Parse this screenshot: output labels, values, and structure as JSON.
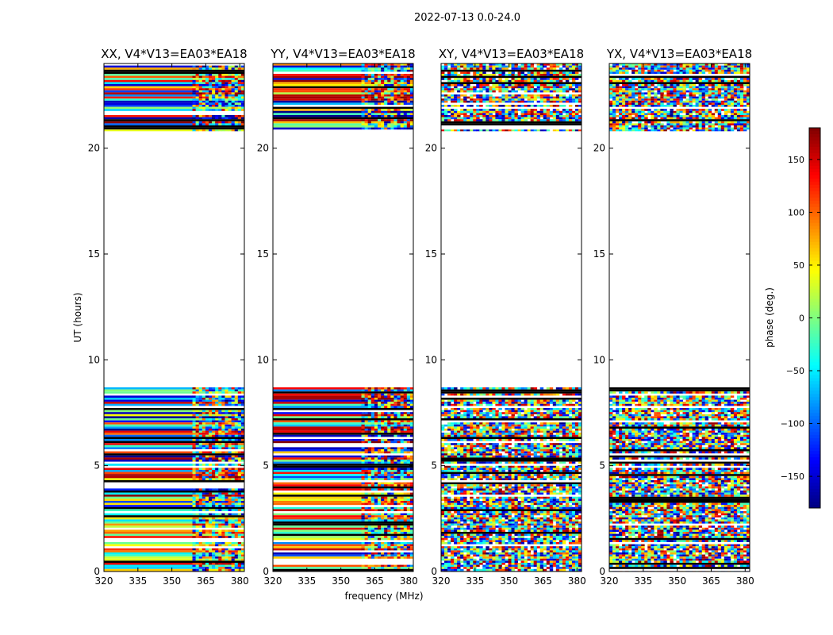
{
  "figure": {
    "title": "2022-07-13 0.0-24.0",
    "xlabel": "frequency (MHz)",
    "ylabel": "UT (hours)"
  },
  "chart_data": {
    "type": "heatmap",
    "x_ticks": [
      "320",
      "335",
      "350",
      "365",
      "380"
    ],
    "y_ticks": [
      "0",
      "5",
      "10",
      "15",
      "20"
    ],
    "xlim": [
      320,
      382
    ],
    "ylim": [
      0,
      24
    ],
    "panels": [
      {
        "title": "XX, V4*V13=EA03*EA18",
        "pattern": "coherent"
      },
      {
        "title": "YY, V4*V13=EA03*EA18",
        "pattern": "coherent"
      },
      {
        "title": "XY, V4*V13=EA03*EA18",
        "pattern": "noise"
      },
      {
        "title": "YX, V4*V13=EA03*EA18",
        "pattern": "noise"
      }
    ],
    "data_ranges_hours": [
      [
        0.0,
        8.7
      ],
      [
        20.8,
        24.0
      ]
    ],
    "colorbar": {
      "label": "phase (deg.)",
      "ticks": [
        "150",
        "100",
        "50",
        "0",
        "−50",
        "−100",
        "−150"
      ],
      "tick_values": [
        150,
        100,
        50,
        0,
        -50,
        -100,
        -150
      ],
      "range": [
        -180,
        180
      ],
      "colormap": "jet"
    }
  }
}
